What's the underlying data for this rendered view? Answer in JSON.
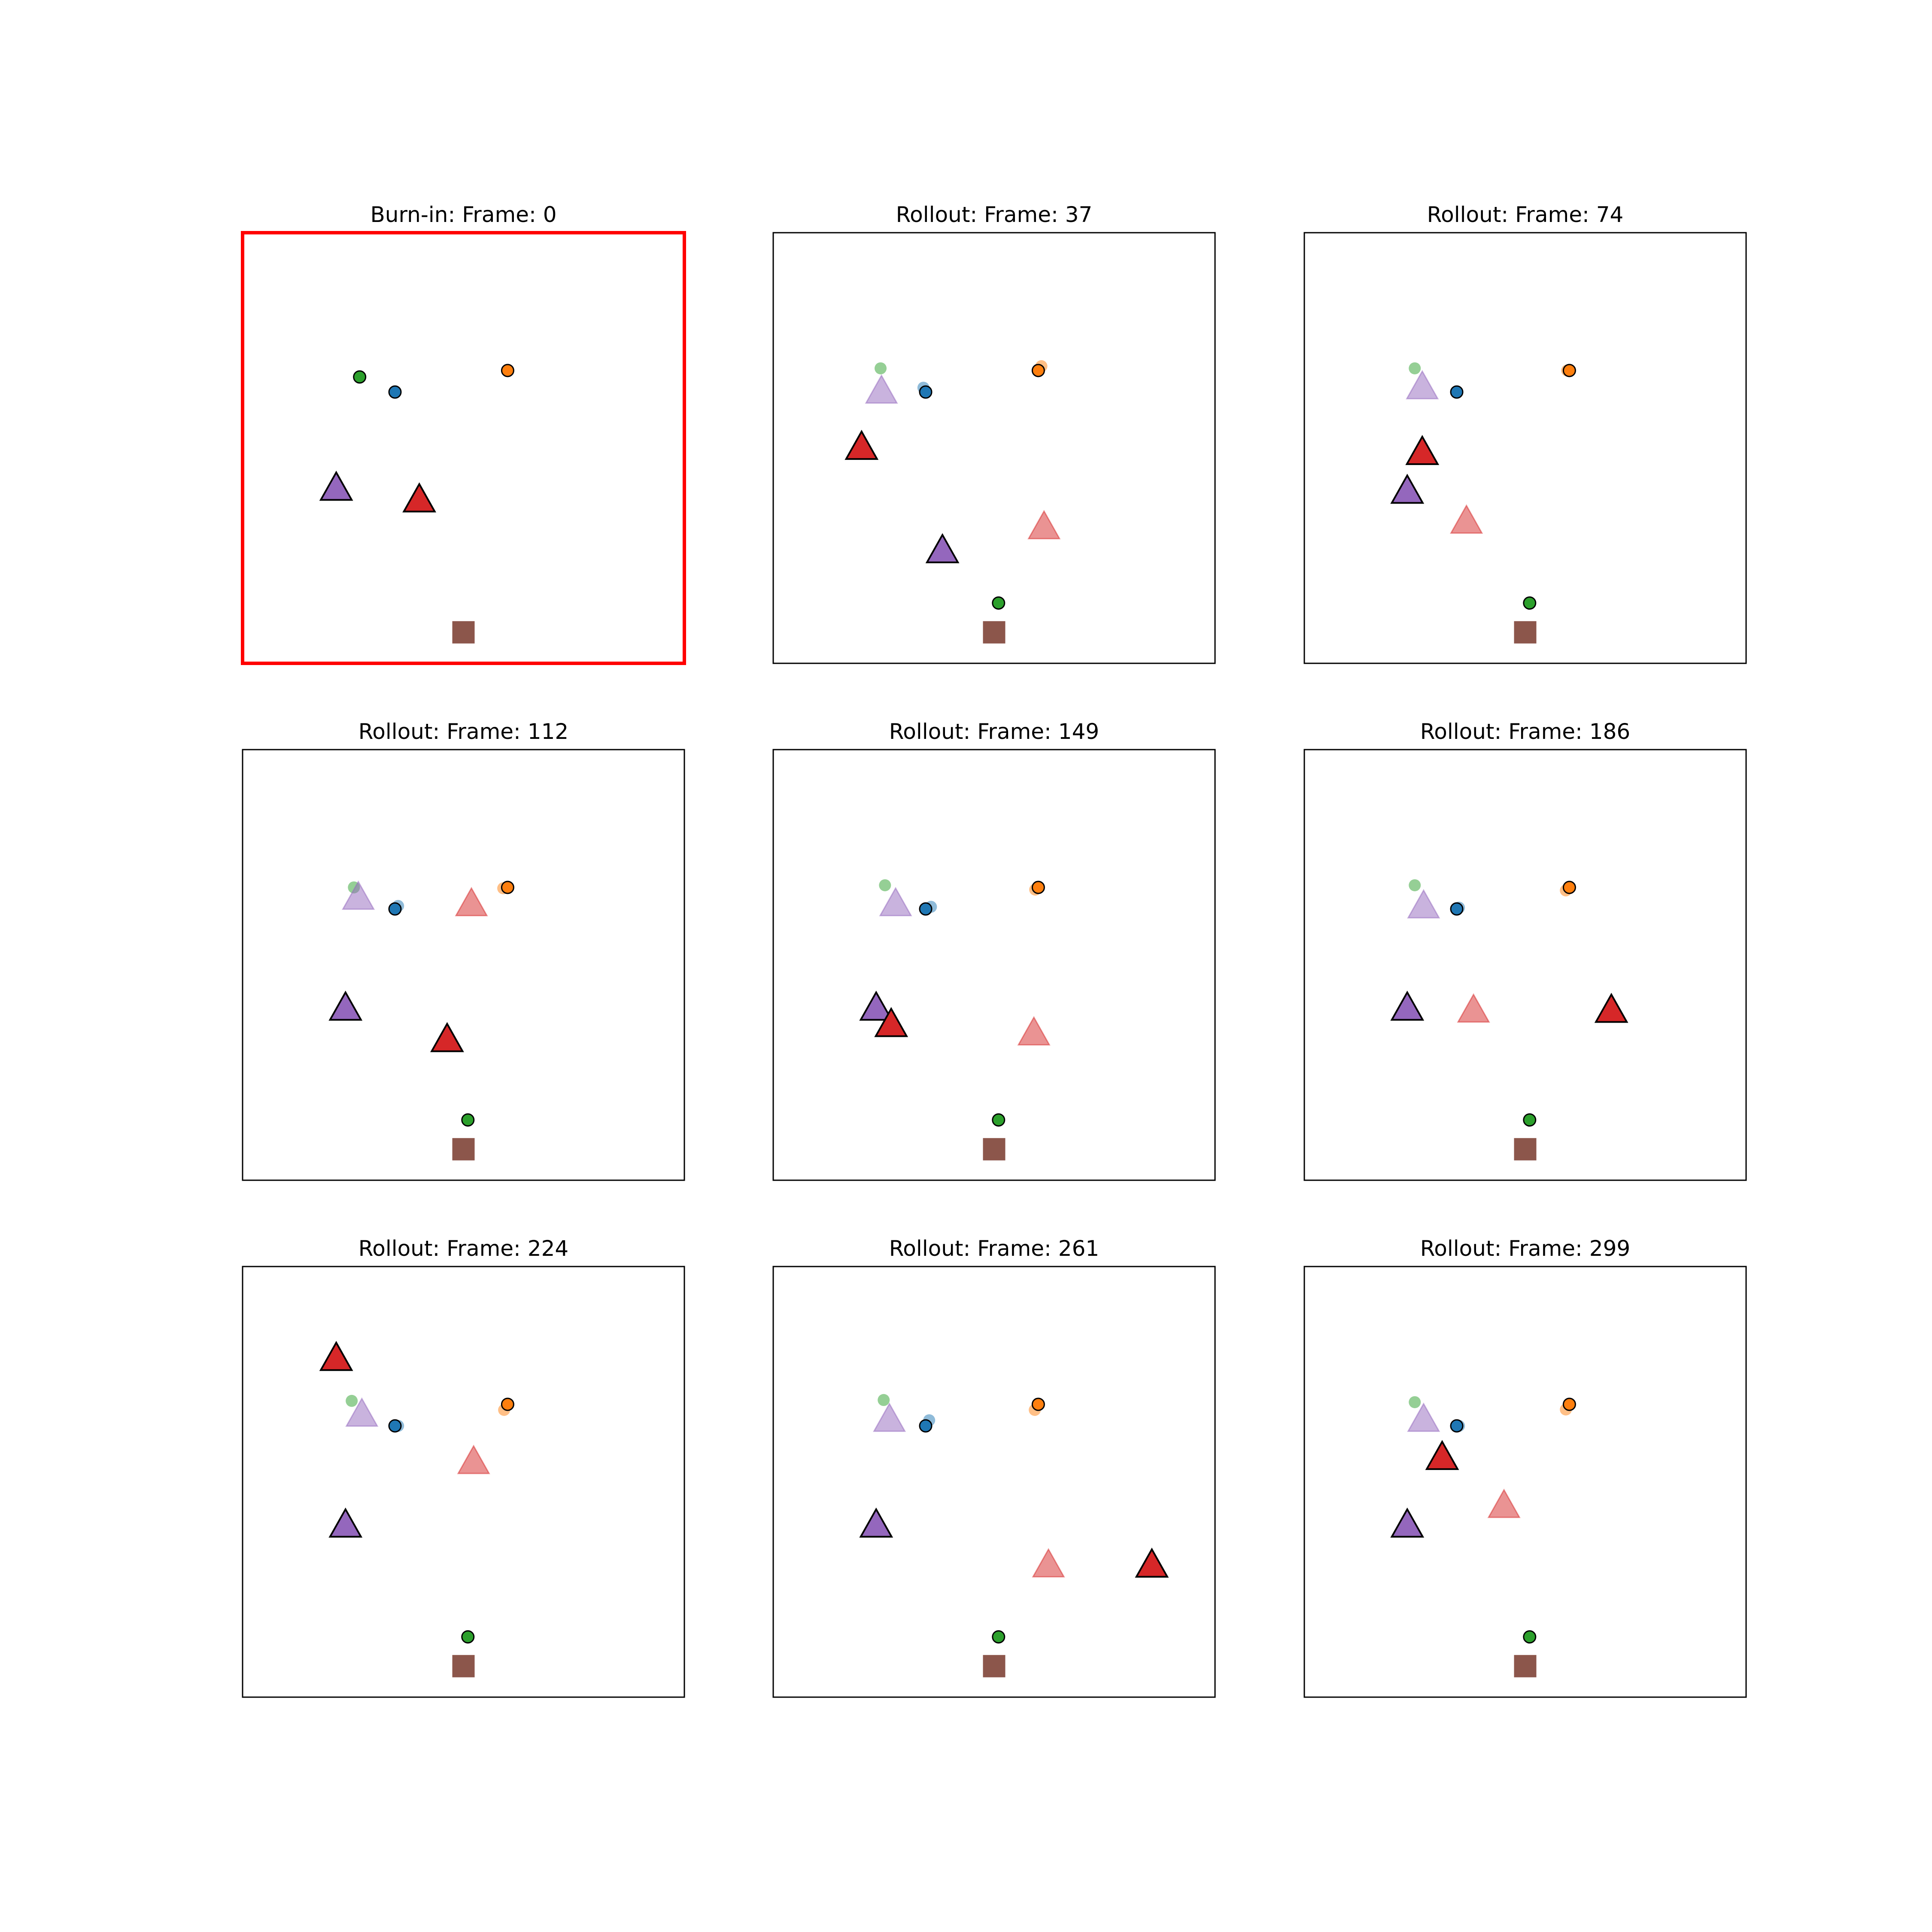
{
  "chart_data": {
    "type": "scatter",
    "grid": false,
    "axes_ticks": false,
    "xlim": [
      0,
      1
    ],
    "ylim": [
      0,
      1
    ],
    "highlight_color": "#ff0000",
    "frame_color": "#000000",
    "marker_edge_color": "#000000",
    "colors": {
      "green": "#2ca02c",
      "blue": "#1f77b4",
      "orange": "#ff7f0e",
      "purple": "#9467bd",
      "red": "#d62728",
      "brown": "#8c564b"
    },
    "panels": [
      {
        "title": "Burn-in: Frame: 0",
        "highlighted": true,
        "markers": [
          {
            "shape": "circle",
            "color": "green",
            "faded": false,
            "x": 0.265,
            "y": 0.665
          },
          {
            "shape": "circle",
            "color": "blue",
            "faded": false,
            "x": 0.345,
            "y": 0.63
          },
          {
            "shape": "circle",
            "color": "orange",
            "faded": false,
            "x": 0.6,
            "y": 0.68
          },
          {
            "shape": "triangle",
            "color": "purple",
            "faded": false,
            "x": 0.212,
            "y": 0.405
          },
          {
            "shape": "triangle",
            "color": "red",
            "faded": false,
            "x": 0.4,
            "y": 0.378
          },
          {
            "shape": "square",
            "color": "brown",
            "faded": false,
            "x": 0.5,
            "y": 0.072
          }
        ]
      },
      {
        "title": "Rollout: Frame: 37",
        "highlighted": false,
        "markers": [
          {
            "shape": "circle",
            "color": "green",
            "faded": true,
            "x": 0.243,
            "y": 0.685
          },
          {
            "shape": "circle",
            "color": "blue",
            "faded": true,
            "x": 0.34,
            "y": 0.64
          },
          {
            "shape": "circle",
            "color": "orange",
            "faded": true,
            "x": 0.607,
            "y": 0.69
          },
          {
            "shape": "triangle",
            "color": "purple",
            "faded": true,
            "x": 0.245,
            "y": 0.63
          },
          {
            "shape": "triangle",
            "color": "red",
            "faded": true,
            "x": 0.613,
            "y": 0.315
          },
          {
            "shape": "circle",
            "color": "blue",
            "faded": false,
            "x": 0.345,
            "y": 0.63
          },
          {
            "shape": "circle",
            "color": "orange",
            "faded": false,
            "x": 0.6,
            "y": 0.68
          },
          {
            "shape": "circle",
            "color": "green",
            "faded": false,
            "x": 0.51,
            "y": 0.14
          },
          {
            "shape": "triangle",
            "color": "red",
            "faded": false,
            "x": 0.2,
            "y": 0.5
          },
          {
            "shape": "triangle",
            "color": "purple",
            "faded": false,
            "x": 0.383,
            "y": 0.26
          },
          {
            "shape": "square",
            "color": "brown",
            "faded": false,
            "x": 0.5,
            "y": 0.072
          }
        ]
      },
      {
        "title": "Rollout: Frame: 74",
        "highlighted": false,
        "markers": [
          {
            "shape": "circle",
            "color": "green",
            "faded": true,
            "x": 0.25,
            "y": 0.685
          },
          {
            "shape": "circle",
            "color": "orange",
            "faded": true,
            "x": 0.595,
            "y": 0.68
          },
          {
            "shape": "triangle",
            "color": "purple",
            "faded": true,
            "x": 0.267,
            "y": 0.64
          },
          {
            "shape": "triangle",
            "color": "red",
            "faded": true,
            "x": 0.367,
            "y": 0.328
          },
          {
            "shape": "circle",
            "color": "blue",
            "faded": false,
            "x": 0.345,
            "y": 0.63
          },
          {
            "shape": "circle",
            "color": "orange",
            "faded": false,
            "x": 0.6,
            "y": 0.68
          },
          {
            "shape": "circle",
            "color": "green",
            "faded": false,
            "x": 0.51,
            "y": 0.14
          },
          {
            "shape": "triangle",
            "color": "red",
            "faded": false,
            "x": 0.267,
            "y": 0.488
          },
          {
            "shape": "triangle",
            "color": "purple",
            "faded": false,
            "x": 0.233,
            "y": 0.398
          },
          {
            "shape": "square",
            "color": "brown",
            "faded": false,
            "x": 0.5,
            "y": 0.072
          }
        ]
      },
      {
        "title": "Rollout: Frame: 112",
        "highlighted": false,
        "markers": [
          {
            "shape": "circle",
            "color": "green",
            "faded": true,
            "x": 0.252,
            "y": 0.68
          },
          {
            "shape": "circle",
            "color": "blue",
            "faded": true,
            "x": 0.352,
            "y": 0.637
          },
          {
            "shape": "circle",
            "color": "orange",
            "faded": true,
            "x": 0.59,
            "y": 0.678
          },
          {
            "shape": "triangle",
            "color": "purple",
            "faded": true,
            "x": 0.262,
            "y": 0.655
          },
          {
            "shape": "triangle",
            "color": "red",
            "faded": true,
            "x": 0.518,
            "y": 0.64
          },
          {
            "shape": "circle",
            "color": "blue",
            "faded": false,
            "x": 0.345,
            "y": 0.63
          },
          {
            "shape": "circle",
            "color": "orange",
            "faded": false,
            "x": 0.6,
            "y": 0.68
          },
          {
            "shape": "circle",
            "color": "green",
            "faded": false,
            "x": 0.51,
            "y": 0.14
          },
          {
            "shape": "triangle",
            "color": "purple",
            "faded": false,
            "x": 0.233,
            "y": 0.398
          },
          {
            "shape": "triangle",
            "color": "red",
            "faded": false,
            "x": 0.463,
            "y": 0.325
          },
          {
            "shape": "square",
            "color": "brown",
            "faded": false,
            "x": 0.5,
            "y": 0.072
          }
        ]
      },
      {
        "title": "Rollout: Frame: 149",
        "highlighted": false,
        "markers": [
          {
            "shape": "circle",
            "color": "green",
            "faded": true,
            "x": 0.253,
            "y": 0.685
          },
          {
            "shape": "circle",
            "color": "blue",
            "faded": true,
            "x": 0.357,
            "y": 0.635
          },
          {
            "shape": "circle",
            "color": "orange",
            "faded": true,
            "x": 0.593,
            "y": 0.675
          },
          {
            "shape": "triangle",
            "color": "purple",
            "faded": true,
            "x": 0.277,
            "y": 0.64
          },
          {
            "shape": "triangle",
            "color": "red",
            "faded": true,
            "x": 0.59,
            "y": 0.34
          },
          {
            "shape": "circle",
            "color": "blue",
            "faded": false,
            "x": 0.345,
            "y": 0.63
          },
          {
            "shape": "circle",
            "color": "orange",
            "faded": false,
            "x": 0.6,
            "y": 0.68
          },
          {
            "shape": "circle",
            "color": "green",
            "faded": false,
            "x": 0.51,
            "y": 0.14
          },
          {
            "shape": "triangle",
            "color": "purple",
            "faded": false,
            "x": 0.233,
            "y": 0.398
          },
          {
            "shape": "triangle",
            "color": "red",
            "faded": false,
            "x": 0.267,
            "y": 0.36
          },
          {
            "shape": "square",
            "color": "brown",
            "faded": false,
            "x": 0.5,
            "y": 0.072
          }
        ]
      },
      {
        "title": "Rollout: Frame: 186",
        "highlighted": false,
        "markers": [
          {
            "shape": "circle",
            "color": "green",
            "faded": true,
            "x": 0.25,
            "y": 0.685
          },
          {
            "shape": "circle",
            "color": "blue",
            "faded": true,
            "x": 0.35,
            "y": 0.633
          },
          {
            "shape": "circle",
            "color": "orange",
            "faded": true,
            "x": 0.592,
            "y": 0.673
          },
          {
            "shape": "triangle",
            "color": "purple",
            "faded": true,
            "x": 0.27,
            "y": 0.635
          },
          {
            "shape": "triangle",
            "color": "red",
            "faded": true,
            "x": 0.383,
            "y": 0.393
          },
          {
            "shape": "circle",
            "color": "blue",
            "faded": false,
            "x": 0.345,
            "y": 0.63
          },
          {
            "shape": "circle",
            "color": "orange",
            "faded": false,
            "x": 0.6,
            "y": 0.68
          },
          {
            "shape": "circle",
            "color": "green",
            "faded": false,
            "x": 0.51,
            "y": 0.14
          },
          {
            "shape": "triangle",
            "color": "purple",
            "faded": false,
            "x": 0.233,
            "y": 0.398
          },
          {
            "shape": "triangle",
            "color": "red",
            "faded": false,
            "x": 0.695,
            "y": 0.393
          },
          {
            "shape": "square",
            "color": "brown",
            "faded": false,
            "x": 0.5,
            "y": 0.072
          }
        ]
      },
      {
        "title": "Rollout: Frame: 224",
        "highlighted": false,
        "markers": [
          {
            "shape": "circle",
            "color": "green",
            "faded": true,
            "x": 0.247,
            "y": 0.688
          },
          {
            "shape": "circle",
            "color": "blue",
            "faded": true,
            "x": 0.352,
            "y": 0.63
          },
          {
            "shape": "circle",
            "color": "orange",
            "faded": true,
            "x": 0.592,
            "y": 0.667
          },
          {
            "shape": "triangle",
            "color": "purple",
            "faded": true,
            "x": 0.27,
            "y": 0.655
          },
          {
            "shape": "triangle",
            "color": "red",
            "faded": true,
            "x": 0.523,
            "y": 0.545
          },
          {
            "shape": "circle",
            "color": "blue",
            "faded": false,
            "x": 0.345,
            "y": 0.63
          },
          {
            "shape": "circle",
            "color": "orange",
            "faded": false,
            "x": 0.6,
            "y": 0.68
          },
          {
            "shape": "circle",
            "color": "green",
            "faded": false,
            "x": 0.51,
            "y": 0.14
          },
          {
            "shape": "triangle",
            "color": "red",
            "faded": false,
            "x": 0.212,
            "y": 0.785
          },
          {
            "shape": "triangle",
            "color": "purple",
            "faded": false,
            "x": 0.233,
            "y": 0.398
          },
          {
            "shape": "square",
            "color": "brown",
            "faded": false,
            "x": 0.5,
            "y": 0.072
          }
        ]
      },
      {
        "title": "Rollout: Frame: 261",
        "highlighted": false,
        "markers": [
          {
            "shape": "circle",
            "color": "green",
            "faded": true,
            "x": 0.25,
            "y": 0.69
          },
          {
            "shape": "circle",
            "color": "blue",
            "faded": true,
            "x": 0.353,
            "y": 0.643
          },
          {
            "shape": "circle",
            "color": "orange",
            "faded": true,
            "x": 0.592,
            "y": 0.667
          },
          {
            "shape": "triangle",
            "color": "purple",
            "faded": true,
            "x": 0.263,
            "y": 0.643
          },
          {
            "shape": "triangle",
            "color": "red",
            "faded": true,
            "x": 0.623,
            "y": 0.305
          },
          {
            "shape": "circle",
            "color": "blue",
            "faded": false,
            "x": 0.345,
            "y": 0.63
          },
          {
            "shape": "circle",
            "color": "orange",
            "faded": false,
            "x": 0.6,
            "y": 0.68
          },
          {
            "shape": "circle",
            "color": "green",
            "faded": false,
            "x": 0.51,
            "y": 0.14
          },
          {
            "shape": "triangle",
            "color": "purple",
            "faded": false,
            "x": 0.233,
            "y": 0.398
          },
          {
            "shape": "triangle",
            "color": "red",
            "faded": false,
            "x": 0.857,
            "y": 0.305
          },
          {
            "shape": "square",
            "color": "brown",
            "faded": false,
            "x": 0.5,
            "y": 0.072
          }
        ]
      },
      {
        "title": "Rollout: Frame: 299",
        "highlighted": false,
        "markers": [
          {
            "shape": "circle",
            "color": "green",
            "faded": true,
            "x": 0.25,
            "y": 0.685
          },
          {
            "shape": "circle",
            "color": "blue",
            "faded": true,
            "x": 0.35,
            "y": 0.63
          },
          {
            "shape": "circle",
            "color": "orange",
            "faded": true,
            "x": 0.592,
            "y": 0.668
          },
          {
            "shape": "triangle",
            "color": "purple",
            "faded": true,
            "x": 0.27,
            "y": 0.643
          },
          {
            "shape": "triangle",
            "color": "red",
            "faded": true,
            "x": 0.452,
            "y": 0.443
          },
          {
            "shape": "circle",
            "color": "blue",
            "faded": false,
            "x": 0.345,
            "y": 0.63
          },
          {
            "shape": "circle",
            "color": "orange",
            "faded": false,
            "x": 0.6,
            "y": 0.68
          },
          {
            "shape": "circle",
            "color": "green",
            "faded": false,
            "x": 0.51,
            "y": 0.14
          },
          {
            "shape": "triangle",
            "color": "red",
            "faded": false,
            "x": 0.312,
            "y": 0.555
          },
          {
            "shape": "triangle",
            "color": "purple",
            "faded": false,
            "x": 0.233,
            "y": 0.398
          },
          {
            "shape": "square",
            "color": "brown",
            "faded": false,
            "x": 0.5,
            "y": 0.072
          }
        ]
      }
    ]
  }
}
